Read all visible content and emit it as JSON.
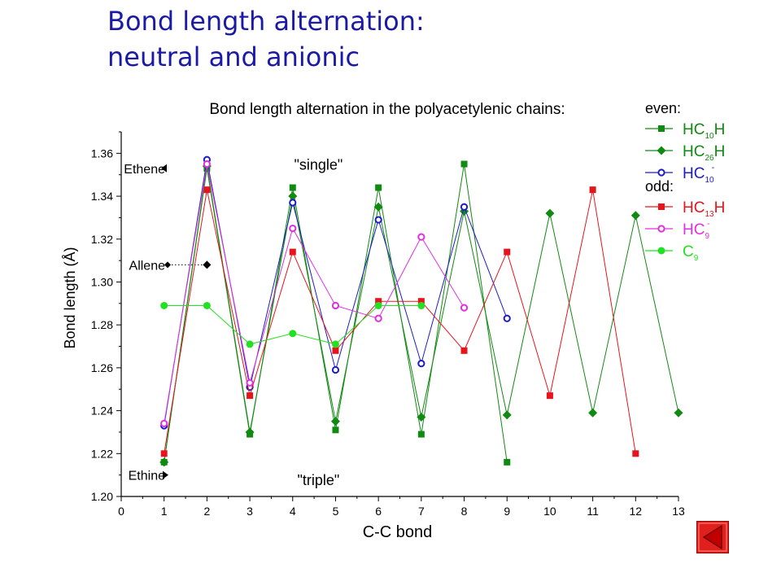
{
  "slide": {
    "title_line1": "Bond length alternation:",
    "title_line2": "neutral and anionic"
  },
  "nav": {
    "icon": "back-arrow-icon",
    "color": "#e0201c"
  },
  "chart_data": {
    "type": "line",
    "title": "Bond length alternation in the polyacetylenic chains:",
    "xlabel": "C-C bond",
    "ylabel": "Bond length (Å)",
    "xlim": [
      0,
      13
    ],
    "ylim": [
      1.2,
      1.37
    ],
    "xticks": [
      "0",
      "1",
      "2",
      "3",
      "4",
      "5",
      "6",
      "7",
      "8",
      "9",
      "10",
      "11",
      "12",
      "13"
    ],
    "yticks": [
      "1.20",
      "1.22",
      "1.24",
      "1.26",
      "1.28",
      "1.30",
      "1.32",
      "1.34",
      "1.36"
    ],
    "grid": false,
    "legend_position": "top-right",
    "legend_groups": [
      "even:",
      "odd:"
    ],
    "series": [
      {
        "label_main": "HC",
        "label_sub": "10",
        "label_end": "H",
        "sup": "",
        "group": "even:",
        "color": "#118a11",
        "marker": "square-filled",
        "x": [
          1,
          2,
          3,
          4,
          5,
          6,
          7,
          8,
          9
        ],
        "y": [
          1.216,
          1.353,
          1.229,
          1.344,
          1.231,
          1.344,
          1.229,
          1.355,
          1.216
        ]
      },
      {
        "label_main": "HC",
        "label_sub": "26",
        "label_end": "H",
        "sup": "",
        "group": "even:",
        "color": "#118a11",
        "marker": "diamond-filled",
        "x": [
          1,
          2,
          3,
          4,
          5,
          6,
          7,
          8,
          9,
          10,
          11,
          12,
          13
        ],
        "y": [
          1.216,
          1.354,
          1.23,
          1.34,
          1.235,
          1.335,
          1.237,
          1.333,
          1.238,
          1.332,
          1.239,
          1.331,
          1.239
        ]
      },
      {
        "label_main": "HC",
        "label_sub": "10",
        "label_end": "",
        "sup": "-",
        "group": "even:",
        "color": "#1c1cc8",
        "marker": "circle-open",
        "x": [
          1,
          2,
          3,
          4,
          5,
          6,
          7,
          8,
          9
        ],
        "y": [
          1.233,
          1.357,
          1.251,
          1.337,
          1.259,
          1.329,
          1.262,
          1.335,
          1.283
        ]
      },
      {
        "label_main": "HC",
        "label_sub": "13",
        "label_end": "H",
        "sup": "",
        "group": "odd:",
        "color": "#e8141c",
        "marker": "square-filled",
        "x": [
          1,
          2,
          3,
          4,
          5,
          6,
          7,
          8,
          9,
          10,
          11,
          12
        ],
        "y": [
          1.22,
          1.343,
          1.247,
          1.314,
          1.268,
          1.291,
          1.291,
          1.268,
          1.314,
          1.247,
          1.343,
          1.22
        ]
      },
      {
        "label_main": "HC",
        "label_sub": "9",
        "label_end": "",
        "sup": "-",
        "group": "odd:",
        "color": "#e030e0",
        "marker": "circle-open",
        "x": [
          1,
          2,
          3,
          4,
          5,
          6,
          7,
          8
        ],
        "y": [
          1.234,
          1.355,
          1.253,
          1.325,
          1.289,
          1.283,
          1.321,
          1.288
        ]
      },
      {
        "label_main": "C",
        "label_sub": "9",
        "label_end": "",
        "sup": "",
        "group": "odd:",
        "color": "#22e022",
        "marker": "circle-filled",
        "x": [
          1,
          2,
          3,
          4,
          5,
          6,
          7
        ],
        "y": [
          1.289,
          1.289,
          1.271,
          1.276,
          1.271,
          1.289,
          1.289
        ]
      }
    ],
    "annotations": [
      {
        "id": "single",
        "text": "\"single\"",
        "x": 4.6,
        "y": 1.355
      },
      {
        "id": "triple",
        "text": "\"triple\"",
        "x": 4.6,
        "y": 1.208
      }
    ],
    "references": [
      {
        "id": "ethene",
        "text": "Ethene",
        "y": 1.353,
        "marker": "triangle-left"
      },
      {
        "id": "allene",
        "text": "Allene",
        "y": 1.308,
        "marker": "diamond",
        "dotted_to_x": 2
      },
      {
        "id": "ethine",
        "text": "Ethine",
        "y": 1.21,
        "marker": "triangle-right"
      }
    ]
  }
}
